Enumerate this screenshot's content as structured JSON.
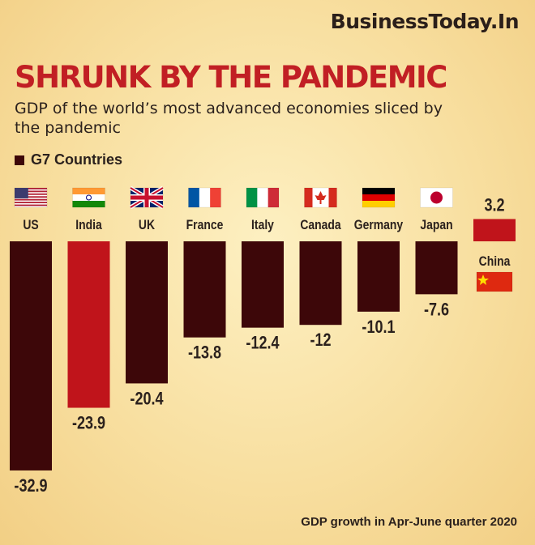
{
  "brand": "BusinessToday.In",
  "headline": "SHRUNK BY THE PANDEMIC",
  "subtitle": "GDP of the world’s most advanced economies sliced by the pandemic",
  "legend_label": "G7 Countries",
  "footnote": "GDP growth in Apr-June quarter 2020",
  "colors": {
    "g7": "#3d0709",
    "other": "#c0141b",
    "value_text": "#2b211d"
  },
  "chart_data": {
    "type": "bar",
    "categories": [
      "US",
      "India",
      "UK",
      "France",
      "Italy",
      "Canada",
      "Germany",
      "Japan",
      "China"
    ],
    "values": [
      -32.9,
      -23.9,
      -20.4,
      -13.8,
      -12.4,
      -12,
      -10.1,
      -7.6,
      3.2
    ],
    "value_labels": [
      "-32.9",
      "-23.9",
      "-20.4",
      "-13.8",
      "-12.4",
      "-12",
      "-10.1",
      "-7.6",
      "3.2"
    ],
    "g7": [
      true,
      false,
      true,
      true,
      true,
      true,
      true,
      true,
      false
    ],
    "flags": [
      "us-flag-icon",
      "india-flag-icon",
      "uk-flag-icon",
      "france-flag-icon",
      "italy-flag-icon",
      "canada-flag-icon",
      "germany-flag-icon",
      "japan-flag-icon",
      "china-flag-icon"
    ],
    "title": "SHRUNK BY THE PANDEMIC",
    "xlabel": "",
    "ylabel": "",
    "ylim": [
      -32.9,
      3.2
    ],
    "grid": false,
    "legend_position": "top-left"
  }
}
